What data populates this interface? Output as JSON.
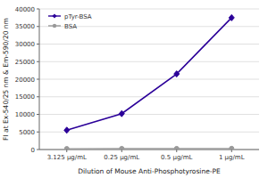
{
  "chart_data": {
    "type": "line",
    "categories": [
      "3.125 μg/mL",
      "0.25 μg/mL",
      "0.5 μg/mL",
      "1 μg/mL"
    ],
    "series": [
      {
        "name": "pTyr-BSA",
        "color": "#2b0099",
        "marker": "diamond",
        "values": [
          5500,
          10200,
          21500,
          37500
        ]
      },
      {
        "name": "BSA",
        "color": "#999999",
        "marker": "circle",
        "values": [
          230,
          280,
          270,
          300
        ]
      }
    ],
    "xlabel": "Dilution of Mouse Anti-Phosphotyrosine-PE",
    "ylabel": "FI at Ex-540/25 nm & Em-590/20 nm",
    "ylim": [
      0,
      40000
    ],
    "yticks": [
      0,
      5000,
      10000,
      15000,
      20000,
      25000,
      30000,
      35000,
      40000
    ],
    "grid": true,
    "legend": "upper left"
  }
}
